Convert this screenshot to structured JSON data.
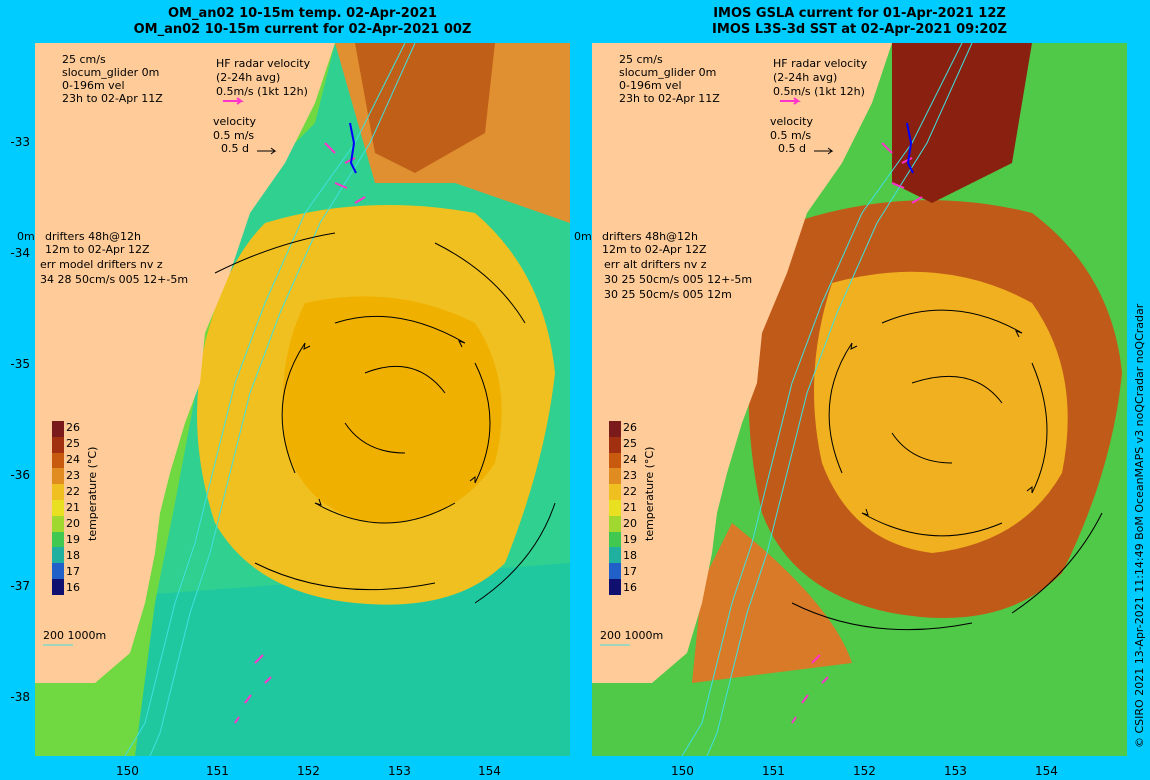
{
  "left": {
    "title_line1": "OM_an02 10-15m temp. 02-Apr-2021",
    "title_line2": "OM_an02 10-15m current for 02-Apr-2021 00Z",
    "glider_scale": "25 cm/s",
    "glider_line1": "slocum_glider 0m",
    "glider_line2": "0-196m vel",
    "glider_line3": "23h to 02-Apr 11Z",
    "hf_line1": "HF radar velocity",
    "hf_line2": "(2-24h avg)",
    "hf_line3": "0.5m/s (1kt 12h)",
    "vel_line1": "velocity",
    "vel_line2": "0.5 m/s",
    "vel_line3": "0.5 d",
    "drift_depth": "0m",
    "drift_line1": "drifters 48h@12h",
    "drift_line2": "12m to 02-Apr 12Z",
    "drift_line3": "err model drifters nv z",
    "drift_line4": "34 28 50cm/s 005 12+-5m",
    "drift_line5": ""
  },
  "right": {
    "title_line1": "IMOS GSLA current for 01-Apr-2021 12Z",
    "title_line2": "IMOS L3S-3d SST at 02-Apr-2021 09:20Z",
    "glider_scale": "25 cm/s",
    "glider_line1": "slocum_glider 0m",
    "glider_line2": "0-196m vel",
    "glider_line3": "23h to 02-Apr 11Z",
    "hf_line1": "HF radar velocity",
    "hf_line2": "(2-24h avg)",
    "hf_line3": "0.5m/s (1kt 12h)",
    "vel_line1": "velocity",
    "vel_line2": "0.5 m/s",
    "vel_line3": "0.5 d",
    "drift_depth": "0m",
    "drift_line1": "drifters 48h@12h",
    "drift_line2": "12m to 02-Apr 12Z",
    "drift_line3": "err alt drifters nv z",
    "drift_line4": "30 25 50cm/s 005 12+-5m",
    "drift_line5": "30 25 50cm/s 005 12m"
  },
  "isobaths": "200  1000m",
  "colorbar_unit": "temperature (°C)",
  "colorbar_ticks": [
    "26",
    "25",
    "24",
    "23",
    "22",
    "21",
    "20",
    "19",
    "18",
    "17",
    "16"
  ],
  "colorbar_colors": [
    "#7a1a1a",
    "#a03010",
    "#c85a10",
    "#e08c20",
    "#f0c020",
    "#e8e020",
    "#a0d830",
    "#40c850",
    "#20b0a0",
    "#2060c8",
    "#101070"
  ],
  "lat_ticks": [
    "-33",
    "-34",
    "-35",
    "-36",
    "-37",
    "-38"
  ],
  "lon_ticks": [
    "150",
    "151",
    "152",
    "153",
    "154"
  ],
  "credit": "© CSIRO 2021   13-Apr-2021 11:14:49 BoM OceanMAPS v3 noQCradar noQCradar",
  "colors": {
    "land": "#ffcc99",
    "background": "#00ccff",
    "warm": "#f0b000",
    "cool": "#20d0a0",
    "drifter": "#ff33cc",
    "glider": "#0000ff"
  }
}
